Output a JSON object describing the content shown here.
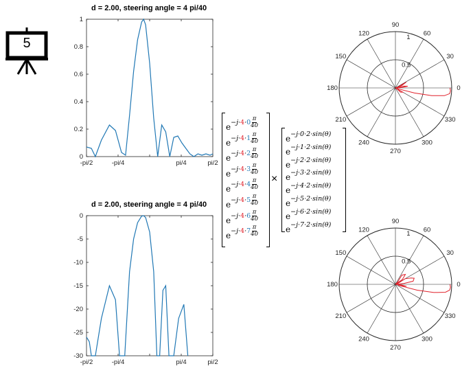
{
  "slide_number": "5",
  "matrix_a": {
    "base": "e",
    "j": "−j·",
    "k": "4",
    "pi": "π",
    "den": "40",
    "rows": [
      "0",
      "1",
      "2",
      "3",
      "4",
      "5",
      "6",
      "7"
    ]
  },
  "times_symbol": "×",
  "matrix_b": {
    "rows": [
      "−j·0·2·sin(θ)",
      "−j·1·2·sin(θ)",
      "−j·2·2·sin(θ)",
      "−j·3·2·sin(θ)",
      "−j·4·2·sin(θ)",
      "−j·5·2·sin(θ)",
      "−j·6·2·sin(θ)",
      "−j·7·2·sin(θ)"
    ]
  },
  "colors": {
    "line": "#1f77b4",
    "polar": "#e0202a",
    "accent_red": "#e0202a",
    "accent_blue": "#1f77b4"
  },
  "chart_data": [
    {
      "type": "line",
      "title": "d = 2.00, steering angle  = 4 pi/40",
      "xlabel": "",
      "ylabel": "",
      "xlim": [
        -1.5708,
        1.5708
      ],
      "ylim": [
        0,
        1
      ],
      "xticks": [
        "-pi/2",
        "-pi/4",
        "",
        "pi/4",
        "pi/2"
      ],
      "yticks": [
        "0",
        "0.2",
        "0.4",
        "0.6",
        "0.8",
        "1"
      ],
      "series": [
        {
          "x": [
            -1.5708,
            -1.45,
            -1.35,
            -1.2,
            -1.0,
            -0.85,
            -0.7,
            -0.6,
            -0.5,
            -0.4,
            -0.3,
            -0.2,
            -0.15,
            -0.1,
            0.0,
            0.1,
            0.2,
            0.3,
            0.4,
            0.5,
            0.6,
            0.7,
            0.8,
            0.9,
            1.0,
            1.1,
            1.2,
            1.3,
            1.4,
            1.5,
            1.5708
          ],
          "y": [
            0.07,
            0.06,
            0.0,
            0.12,
            0.23,
            0.19,
            0.03,
            0.01,
            0.3,
            0.62,
            0.85,
            0.98,
            1.0,
            0.96,
            0.68,
            0.28,
            0.0,
            0.23,
            0.18,
            0.0,
            0.14,
            0.15,
            0.1,
            0.06,
            0.02,
            0.0,
            0.02,
            0.01,
            0.02,
            0.01,
            0.02
          ]
        }
      ]
    },
    {
      "type": "line",
      "title": "d = 2.00, steering angle  = 4 pi/40",
      "xlabel": "",
      "ylabel": "",
      "xlim": [
        -1.5708,
        1.5708
      ],
      "ylim": [
        -30,
        0
      ],
      "xticks": [
        "-pi/2",
        "-pi/4",
        "",
        "pi/4",
        "pi/2"
      ],
      "yticks": [
        "0",
        "-5",
        "-10",
        "-15",
        "-20",
        "-25",
        "-30"
      ],
      "series": [
        {
          "x": [
            -1.5708,
            -1.5,
            -1.45,
            -1.35,
            -1.2,
            -1.0,
            -0.85,
            -0.75,
            -0.62,
            -0.5,
            -0.4,
            -0.3,
            -0.2,
            -0.15,
            -0.1,
            0.0,
            0.1,
            0.18,
            0.25,
            0.33,
            0.4,
            0.48,
            0.6,
            0.72,
            0.85,
            0.95
          ],
          "y": [
            -26,
            -27,
            -30,
            -30,
            -22,
            -15,
            -18,
            -30,
            -30,
            -12,
            -5,
            -1.5,
            -0.1,
            0,
            -0.4,
            -3.5,
            -12,
            -30,
            -30,
            -16,
            -15,
            -30,
            -30,
            -22,
            -19,
            -30
          ]
        }
      ]
    },
    {
      "type": "polar",
      "title": "",
      "rlim": [
        0,
        1
      ],
      "rticks": [
        "0.5",
        "1"
      ],
      "angle_ticks": [
        "0",
        "30",
        "60",
        "90",
        "120",
        "150",
        "180",
        "210",
        "240",
        "270",
        "300",
        "330"
      ],
      "series": [
        {
          "theta_deg": [
            0,
            -3,
            -6,
            -9,
            -12,
            -15,
            -18,
            -15,
            -12,
            -9,
            -6,
            -3,
            0,
            4,
            8,
            12,
            8,
            4,
            0,
            20,
            28,
            20,
            0,
            -30,
            -40,
            -30,
            0
          ],
          "r": [
            0.97,
            0.98,
            0.97,
            0.88,
            0.66,
            0.35,
            0.05,
            0.02,
            0.0,
            0.0,
            0.0,
            0.0,
            0.0,
            0.12,
            0.22,
            0.15,
            0.05,
            0.02,
            0,
            0.12,
            0.22,
            0.05,
            0,
            0.15,
            0.12,
            0.03,
            0
          ]
        }
      ]
    },
    {
      "type": "polar",
      "title": "",
      "rlim": [
        0,
        1
      ],
      "rticks": [
        "0.5",
        "1"
      ],
      "angle_ticks": [
        "0",
        "30",
        "60",
        "90",
        "120",
        "150",
        "180",
        "210",
        "240",
        "270",
        "300",
        "330"
      ],
      "series": [
        {
          "theta_deg": [
            0,
            -3,
            -6,
            -9,
            -12,
            -15,
            -18,
            -14,
            -10,
            -6,
            0,
            6,
            10,
            18,
            22,
            30,
            22,
            14,
            8,
            0,
            35,
            45,
            55,
            45,
            35,
            0
          ],
          "r": [
            0.97,
            0.98,
            0.97,
            0.9,
            0.7,
            0.4,
            0.05,
            0.1,
            0.2,
            0.1,
            0.0,
            0.15,
            0.32,
            0.35,
            0.3,
            0.2,
            0.05,
            0.0,
            0.0,
            0.0,
            0.15,
            0.25,
            0.2,
            0.05,
            0.0,
            0
          ]
        }
      ]
    }
  ]
}
